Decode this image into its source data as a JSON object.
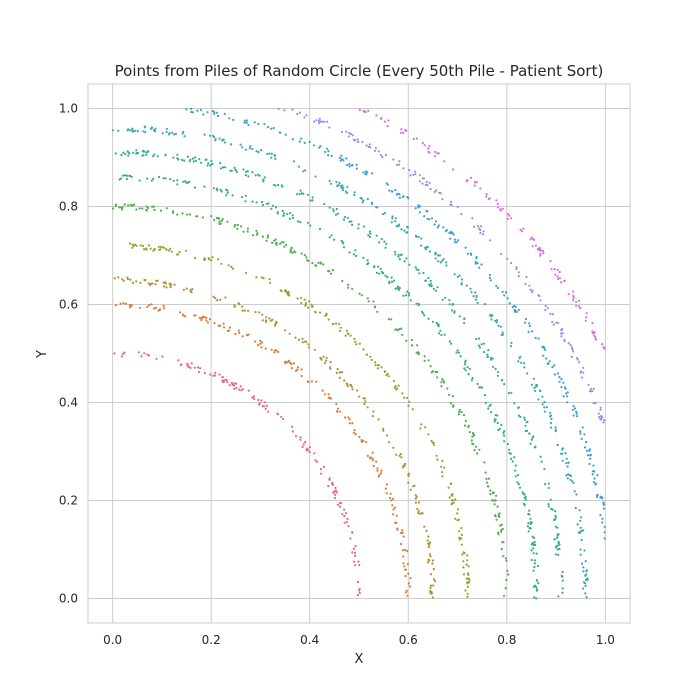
{
  "chart_data": {
    "type": "scatter",
    "title": "Points from Piles of Random Circle (Every 50th Pile - Patient Sort)",
    "xlabel": "X",
    "ylabel": "Y",
    "xlim": [
      -0.05,
      1.05
    ],
    "ylim": [
      -0.05,
      1.05
    ],
    "x_ticks": [
      "0.0",
      "0.2",
      "0.4",
      "0.6",
      "0.8",
      "1.0"
    ],
    "y_ticks": [
      "0.0",
      "0.2",
      "0.4",
      "0.6",
      "0.8",
      "1.0"
    ],
    "grid": true,
    "legend": "none",
    "series": [
      {
        "color": "#e8677e",
        "radius": 0.5,
        "theta_start_deg": 0,
        "theta_end_deg": 90
      },
      {
        "color": "#dd7b37",
        "radius": 0.6,
        "theta_start_deg": 0,
        "theta_end_deg": 90
      },
      {
        "color": "#b18f33",
        "radius": 0.65,
        "theta_start_deg": 0,
        "theta_end_deg": 90
      },
      {
        "color": "#93a331",
        "radius": 0.72,
        "theta_start_deg": 0,
        "theta_end_deg": 90
      },
      {
        "color": "#4eae4a",
        "radius": 0.8,
        "theta_start_deg": 0,
        "theta_end_deg": 90
      },
      {
        "color": "#33ad81",
        "radius": 0.86,
        "theta_start_deg": 0,
        "theta_end_deg": 90
      },
      {
        "color": "#36aa9a",
        "radius": 0.91,
        "theta_start_deg": 0,
        "theta_end_deg": 90
      },
      {
        "color": "#39a7b2",
        "radius": 0.96,
        "theta_start_deg": 0,
        "theta_end_deg": 90
      },
      {
        "color": "#3a9fd3",
        "radius": 1.01,
        "theta_start_deg": 0,
        "theta_end_deg": 90
      },
      {
        "color": "#a08ae8",
        "radius": 1.06,
        "theta_start_deg": 0,
        "theta_end_deg": 90
      },
      {
        "color": "#dc6ce6",
        "radius": 1.12,
        "theta_start_deg": 0,
        "theta_end_deg": 90
      }
    ]
  }
}
